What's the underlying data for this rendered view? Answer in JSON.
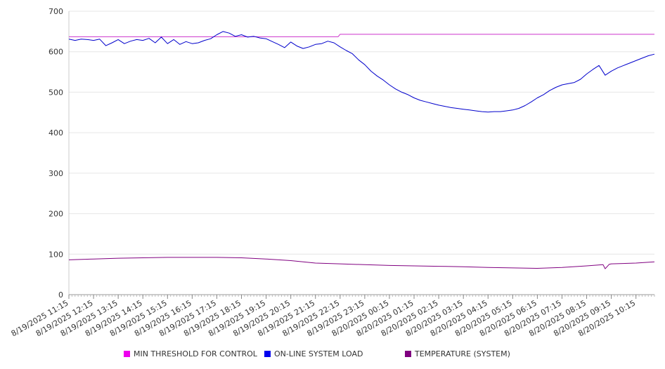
{
  "chart_data": {
    "type": "line",
    "ylim": [
      0,
      700
    ],
    "yticks": [
      0,
      100,
      200,
      300,
      400,
      500,
      600,
      700
    ],
    "xtick_labels": [
      "8/19/2025 11:15",
      "8/19/2025 12:15",
      "8/19/2025 13:15",
      "8/19/2025 14:15",
      "8/19/2025 15:15",
      "8/19/2025 16:15",
      "8/19/2025 17:15",
      "8/19/2025 18:15",
      "8/19/2025 19:15",
      "8/19/2025 20:15",
      "8/19/2025 21:15",
      "8/19/2025 22:15",
      "8/19/2025 23:15",
      "8/20/2025 00:15",
      "8/20/2025 01:15",
      "8/20/2025 02:15",
      "8/20/2025 03:15",
      "8/20/2025 04:15",
      "8/20/2025 05:15",
      "8/20/2025 06:15",
      "8/20/2025 07:15",
      "8/20/2025 08:15",
      "8/20/2025 09:15",
      "8/20/2025 10:15"
    ],
    "x_start": "8/19/2025 11:15",
    "x_end": "8/20/2025 11:00",
    "series": [
      {
        "name": "MIN THRESHOLD FOR CONTROL",
        "color": "#cc33cc",
        "points": [
          [
            "8/19/2025 11:15",
            637
          ],
          [
            "8/19/2025 22:10",
            637
          ],
          [
            "8/19/2025 22:15",
            643
          ],
          [
            "8/20/2025 11:00",
            643
          ]
        ]
      },
      {
        "name": "ON-LINE SYSTEM LOAD",
        "color": "#0000cc",
        "points": [
          [
            "8/19/2025 11:15",
            631
          ],
          [
            "8/19/2025 11:30",
            628
          ],
          [
            "8/19/2025 11:45",
            631
          ],
          [
            "8/19/2025 12:00",
            630
          ],
          [
            "8/19/2025 12:15",
            628
          ],
          [
            "8/19/2025 12:30",
            631
          ],
          [
            "8/19/2025 12:45",
            615
          ],
          [
            "8/19/2025 13:00",
            622
          ],
          [
            "8/19/2025 13:15",
            630
          ],
          [
            "8/19/2025 13:30",
            620
          ],
          [
            "8/19/2025 13:45",
            626
          ],
          [
            "8/19/2025 14:00",
            630
          ],
          [
            "8/19/2025 14:15",
            628
          ],
          [
            "8/19/2025 14:30",
            633
          ],
          [
            "8/19/2025 14:45",
            622
          ],
          [
            "8/19/2025 15:00",
            636
          ],
          [
            "8/19/2025 15:15",
            620
          ],
          [
            "8/19/2025 15:30",
            630
          ],
          [
            "8/19/2025 15:45",
            618
          ],
          [
            "8/19/2025 16:00",
            625
          ],
          [
            "8/19/2025 16:15",
            620
          ],
          [
            "8/19/2025 16:30",
            622
          ],
          [
            "8/19/2025 16:45",
            628
          ],
          [
            "8/19/2025 17:00",
            632
          ],
          [
            "8/19/2025 17:15",
            642
          ],
          [
            "8/19/2025 17:30",
            650
          ],
          [
            "8/19/2025 17:45",
            646
          ],
          [
            "8/19/2025 18:00",
            638
          ],
          [
            "8/19/2025 18:15",
            642
          ],
          [
            "8/19/2025 18:30",
            636
          ],
          [
            "8/19/2025 18:45",
            638
          ],
          [
            "8/19/2025 19:00",
            634
          ],
          [
            "8/19/2025 19:15",
            632
          ],
          [
            "8/19/2025 19:30",
            625
          ],
          [
            "8/19/2025 19:45",
            618
          ],
          [
            "8/19/2025 20:00",
            610
          ],
          [
            "8/19/2025 20:15",
            624
          ],
          [
            "8/19/2025 20:30",
            614
          ],
          [
            "8/19/2025 20:45",
            608
          ],
          [
            "8/19/2025 21:00",
            612
          ],
          [
            "8/19/2025 21:15",
            618
          ],
          [
            "8/19/2025 21:30",
            620
          ],
          [
            "8/19/2025 21:45",
            626
          ],
          [
            "8/19/2025 22:00",
            622
          ],
          [
            "8/19/2025 22:15",
            612
          ],
          [
            "8/19/2025 22:30",
            603
          ],
          [
            "8/19/2025 22:45",
            595
          ],
          [
            "8/19/2025 23:00",
            580
          ],
          [
            "8/19/2025 23:15",
            568
          ],
          [
            "8/19/2025 23:30",
            552
          ],
          [
            "8/19/2025 23:45",
            540
          ],
          [
            "8/20/2025 00:00",
            530
          ],
          [
            "8/20/2025 00:15",
            518
          ],
          [
            "8/20/2025 00:30",
            508
          ],
          [
            "8/20/2025 00:45",
            500
          ],
          [
            "8/20/2025 01:00",
            494
          ],
          [
            "8/20/2025 01:15",
            486
          ],
          [
            "8/20/2025 01:30",
            480
          ],
          [
            "8/20/2025 01:45",
            476
          ],
          [
            "8/20/2025 02:00",
            472
          ],
          [
            "8/20/2025 02:15",
            468
          ],
          [
            "8/20/2025 02:30",
            465
          ],
          [
            "8/20/2025 02:45",
            462
          ],
          [
            "8/20/2025 03:00",
            460
          ],
          [
            "8/20/2025 03:15",
            458
          ],
          [
            "8/20/2025 03:30",
            456
          ],
          [
            "8/20/2025 03:45",
            454
          ],
          [
            "8/20/2025 04:00",
            452
          ],
          [
            "8/20/2025 04:15",
            451
          ],
          [
            "8/20/2025 04:30",
            452
          ],
          [
            "8/20/2025 04:45",
            452
          ],
          [
            "8/20/2025 05:00",
            454
          ],
          [
            "8/20/2025 05:15",
            456
          ],
          [
            "8/20/2025 05:30",
            460
          ],
          [
            "8/20/2025 05:45",
            467
          ],
          [
            "8/20/2025 06:00",
            476
          ],
          [
            "8/20/2025 06:15",
            486
          ],
          [
            "8/20/2025 06:30",
            494
          ],
          [
            "8/20/2025 06:45",
            504
          ],
          [
            "8/20/2025 07:00",
            512
          ],
          [
            "8/20/2025 07:15",
            518
          ],
          [
            "8/20/2025 07:30",
            521
          ],
          [
            "8/20/2025 07:45",
            524
          ],
          [
            "8/20/2025 08:00",
            532
          ],
          [
            "8/20/2025 08:15",
            545
          ],
          [
            "8/20/2025 08:30",
            556
          ],
          [
            "8/20/2025 08:45",
            566
          ],
          [
            "8/20/2025 09:00",
            542
          ],
          [
            "8/20/2025 09:15",
            552
          ],
          [
            "8/20/2025 09:30",
            560
          ],
          [
            "8/20/2025 09:45",
            566
          ],
          [
            "8/20/2025 10:00",
            572
          ],
          [
            "8/20/2025 10:15",
            578
          ],
          [
            "8/20/2025 10:30",
            584
          ],
          [
            "8/20/2025 10:45",
            590
          ],
          [
            "8/20/2025 11:00",
            594
          ]
        ]
      },
      {
        "name": "TEMPERATURE (SYSTEM)",
        "color": "#800080",
        "points": [
          [
            "8/19/2025 11:15",
            86
          ],
          [
            "8/19/2025 12:15",
            88
          ],
          [
            "8/19/2025 13:15",
            90
          ],
          [
            "8/19/2025 14:15",
            91
          ],
          [
            "8/19/2025 15:15",
            92
          ],
          [
            "8/19/2025 16:15",
            92
          ],
          [
            "8/19/2025 17:15",
            92
          ],
          [
            "8/19/2025 18:15",
            91
          ],
          [
            "8/19/2025 19:15",
            88
          ],
          [
            "8/19/2025 20:15",
            84
          ],
          [
            "8/19/2025 21:15",
            78
          ],
          [
            "8/19/2025 22:15",
            76
          ],
          [
            "8/19/2025 23:15",
            74
          ],
          [
            "8/20/2025 00:15",
            72
          ],
          [
            "8/20/2025 01:15",
            71
          ],
          [
            "8/20/2025 02:15",
            70
          ],
          [
            "8/20/2025 03:15",
            69
          ],
          [
            "8/20/2025 04:15",
            67
          ],
          [
            "8/20/2025 05:15",
            66
          ],
          [
            "8/20/2025 06:15",
            65
          ],
          [
            "8/20/2025 07:15",
            67
          ],
          [
            "8/20/2025 08:15",
            71
          ],
          [
            "8/20/2025 08:55",
            74
          ],
          [
            "8/20/2025 09:00",
            64
          ],
          [
            "8/20/2025 09:10",
            75
          ],
          [
            "8/20/2025 09:15",
            76
          ],
          [
            "8/20/2025 10:15",
            78
          ],
          [
            "8/20/2025 11:00",
            81
          ]
        ]
      }
    ],
    "grid": true,
    "legend_position": "bottom"
  },
  "legend": [
    {
      "label": "MIN THRESHOLD FOR CONTROL",
      "color": "#ee00ee"
    },
    {
      "label": "ON-LINE SYSTEM LOAD",
      "color": "#0000ee"
    },
    {
      "label": "TEMPERATURE (SYSTEM)",
      "color": "#800080"
    }
  ]
}
